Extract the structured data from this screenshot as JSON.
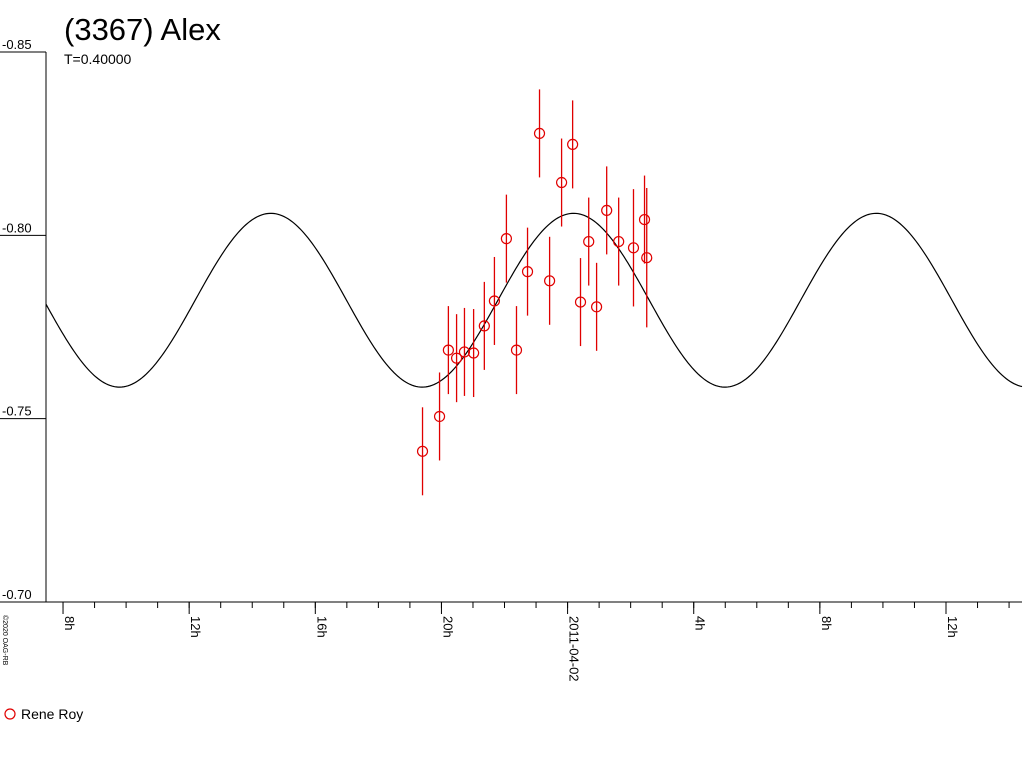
{
  "chart_data": {
    "type": "scatter",
    "title": "(3367) Alex",
    "subtitle": "T=0.40000",
    "copyright": "©2020 OAG-RB",
    "xlim": [
      7.46,
      38.41
    ],
    "xticks": [
      {
        "value": 8,
        "label": "8h"
      },
      {
        "value": 12,
        "label": "12h"
      },
      {
        "value": 16,
        "label": "16h"
      },
      {
        "value": 20,
        "label": "20h"
      },
      {
        "value": 24,
        "label": "2011-04-02"
      },
      {
        "value": 28,
        "label": "4h"
      },
      {
        "value": 32,
        "label": "8h"
      },
      {
        "value": 36,
        "label": "12h"
      }
    ],
    "x_minor_step": 1,
    "ylim": [
      -0.85,
      -0.7
    ],
    "y_inverted": true,
    "yticks": [
      -0.85,
      {
        "value": -0.8,
        "label": "-0.80"
      },
      -0.75,
      {
        "value": -0.7,
        "label": "-0.70"
      }
    ],
    "fit": {
      "mean": -0.7823,
      "amplitude": 0.0237,
      "epoch": 24.19,
      "period_days": 0.4,
      "color": "#000000"
    },
    "legend": "bottom-left",
    "series": [
      {
        "name": "Rene Roy",
        "color": "#e00000",
        "x": [
          19.4,
          19.94,
          20.22,
          20.48,
          20.73,
          21.02,
          21.36,
          21.68,
          22.06,
          22.38,
          22.73,
          23.11,
          23.43,
          23.81,
          24.16,
          24.41,
          24.67,
          24.92,
          25.24,
          25.62,
          26.09,
          26.44,
          26.51
        ],
        "values": [
          -0.7411,
          -0.7506,
          -0.7687,
          -0.7665,
          -0.7682,
          -0.7679,
          -0.7753,
          -0.7821,
          -0.7991,
          -0.7687,
          -0.7901,
          -0.8278,
          -0.7876,
          -0.8144,
          -0.8248,
          -0.7818,
          -0.7983,
          -0.7805,
          -0.8068,
          -0.7983,
          -0.7966,
          -0.8043,
          -0.7939
        ],
        "y_error": [
          0.012,
          0.012,
          0.012,
          0.012,
          0.012,
          0.012,
          0.012,
          0.012,
          0.012,
          0.012,
          0.012,
          0.012,
          0.012,
          0.012,
          0.012,
          0.012,
          0.012,
          0.012,
          0.012,
          0.012,
          0.016,
          0.012,
          0.019
        ]
      }
    ]
  }
}
